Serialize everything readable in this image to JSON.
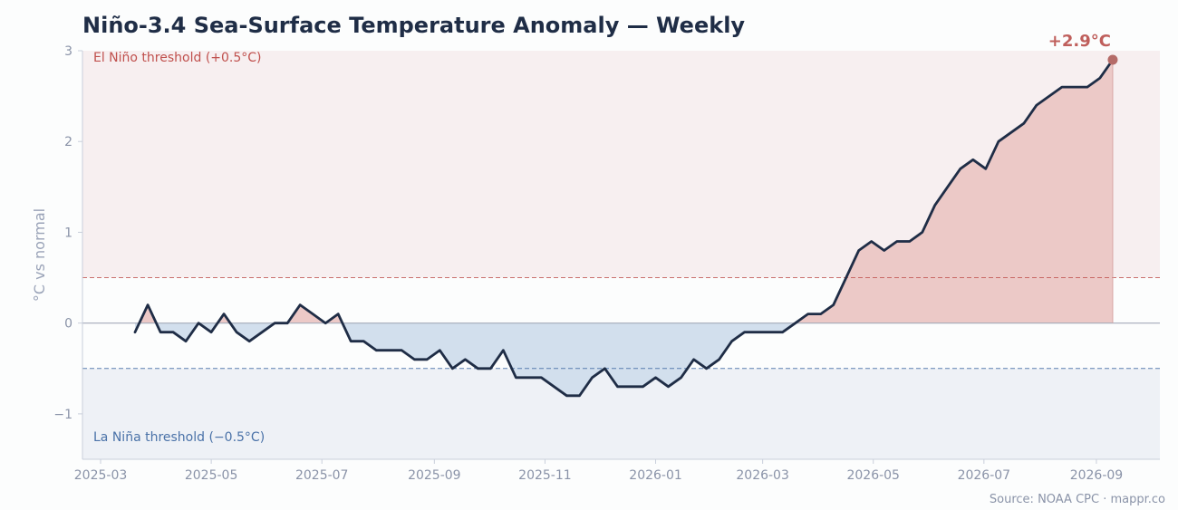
{
  "title": "Niño-3.4 Sea-Surface Temperature Anomaly — Weekly",
  "source": "Source: NOAA CPC  ·  mappr.co",
  "colors": {
    "line": "#1f2d46",
    "warm": "#c0504d",
    "cool": "#4a72a8",
    "warm_fill": "#ecc9c7",
    "cool_fill": "#d2dfed",
    "warm_zone": "#f7eff0",
    "cool_zone": "#eef1f6"
  },
  "chart_data": {
    "type": "area",
    "title": "Niño-3.4 Sea-Surface Temperature Anomaly — Weekly",
    "xlabel": "",
    "ylabel": "°C vs normal",
    "xlim": [
      "2025-02-19",
      "2026-10-06"
    ],
    "ylim": [
      -1.5,
      3.0
    ],
    "yticks": [
      -1,
      0,
      1,
      2,
      3
    ],
    "ytick_labels": [
      "−1",
      "0",
      "1",
      "2",
      "3"
    ],
    "xticks": [
      "2025-03-01",
      "2025-05-01",
      "2025-07-01",
      "2025-09-01",
      "2025-11-01",
      "2026-01-01",
      "2026-03-01",
      "2026-05-01",
      "2026-07-01",
      "2026-09-01"
    ],
    "xtick_labels": [
      "2025-03",
      "2025-05",
      "2025-07",
      "2025-09",
      "2025-11",
      "2026-01",
      "2026-03",
      "2026-05",
      "2026-07",
      "2026-09"
    ],
    "thresholds": {
      "el_nino": 0.5,
      "la_nina": -0.5,
      "el_nino_label": "El Niño threshold (+0.5°C)",
      "la_nina_label": "La Niña threshold (−0.5°C)"
    },
    "start_date": "2025-03-20",
    "interval_days": 7,
    "values": [
      -0.1,
      0.2,
      -0.1,
      -0.1,
      -0.2,
      0.0,
      -0.1,
      0.1,
      -0.1,
      -0.2,
      -0.1,
      0.0,
      0.0,
      0.2,
      0.1,
      0.0,
      0.1,
      -0.2,
      -0.2,
      -0.3,
      -0.3,
      -0.3,
      -0.4,
      -0.4,
      -0.3,
      -0.5,
      -0.4,
      -0.5,
      -0.5,
      -0.3,
      -0.6,
      -0.6,
      -0.6,
      -0.7,
      -0.8,
      -0.8,
      -0.6,
      -0.5,
      -0.7,
      -0.7,
      -0.7,
      -0.6,
      -0.7,
      -0.6,
      -0.4,
      -0.5,
      -0.4,
      -0.2,
      -0.1,
      -0.1,
      -0.1,
      -0.1,
      0.0,
      0.1,
      0.1,
      0.2,
      0.5,
      0.8,
      0.9,
      0.8,
      0.9,
      0.9,
      1.0,
      1.3,
      1.5,
      1.7,
      1.8,
      1.7,
      2.0,
      2.1,
      2.2,
      2.4,
      2.5,
      2.6,
      2.6,
      2.6,
      2.7,
      2.9
    ],
    "callout": "+2.9°C",
    "grid": false,
    "legend": "none"
  }
}
